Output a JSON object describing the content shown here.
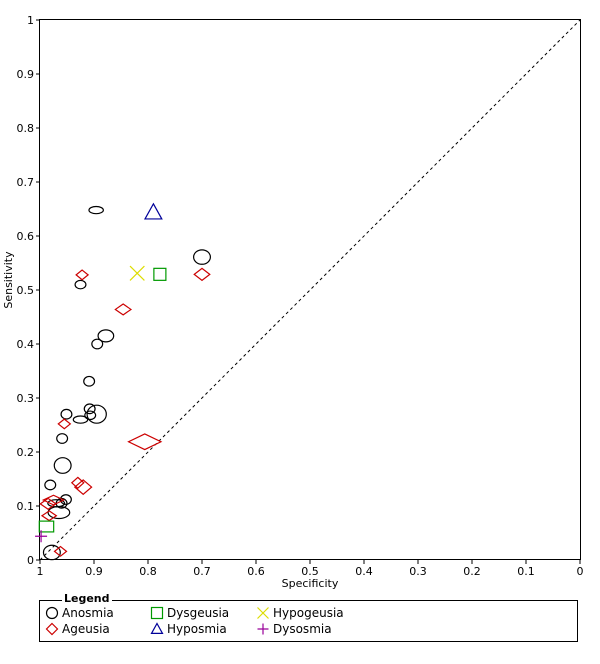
{
  "chart_data": {
    "type": "scatter",
    "title": "",
    "xlabel": "Specificity",
    "ylabel": "Sensitivity",
    "xlim": [
      1,
      0
    ],
    "ylim": [
      0,
      1
    ],
    "x_ticks": [
      "1",
      "0.9",
      "0.8",
      "0.7",
      "0.6",
      "0.5",
      "0.4",
      "0.3",
      "0.2",
      "0.1",
      "0"
    ],
    "y_ticks": [
      "0",
      "0.1",
      "0.2",
      "0.3",
      "0.4",
      "0.5",
      "0.6",
      "0.7",
      "0.8",
      "0.9",
      "1"
    ],
    "reference_line": "diagonal chance line (dashed)",
    "legend": {
      "title": "Legend",
      "entries": [
        {
          "name": "Anosmia",
          "marker": "circle",
          "color": "#000000"
        },
        {
          "name": "Ageusia",
          "marker": "diamond",
          "color": "#cc0000"
        },
        {
          "name": "Dysgeusia",
          "marker": "square",
          "color": "#009900"
        },
        {
          "name": "Hyposmia",
          "marker": "triangle",
          "color": "#000099"
        },
        {
          "name": "Hypogeusia",
          "marker": "x",
          "color": "#dddd00"
        },
        {
          "name": "Dysosmia",
          "marker": "plus",
          "color": "#990099"
        }
      ]
    },
    "series": [
      {
        "name": "Anosmia",
        "marker": "circle",
        "color": "#000000",
        "points": [
          {
            "x": 0.896,
            "y": 0.648,
            "w": 1.2,
            "h": 0.6
          },
          {
            "x": 0.7,
            "y": 0.561,
            "w": 1.4,
            "h": 1.2
          },
          {
            "x": 0.925,
            "y": 0.51,
            "w": 0.9,
            "h": 0.7
          },
          {
            "x": 0.878,
            "y": 0.415,
            "w": 1.3,
            "h": 1.0
          },
          {
            "x": 0.894,
            "y": 0.4,
            "w": 0.9,
            "h": 0.8
          },
          {
            "x": 0.909,
            "y": 0.331,
            "w": 0.9,
            "h": 0.8
          },
          {
            "x": 0.951,
            "y": 0.27,
            "w": 0.9,
            "h": 0.8
          },
          {
            "x": 0.908,
            "y": 0.28,
            "w": 0.9,
            "h": 0.8
          },
          {
            "x": 0.895,
            "y": 0.27,
            "w": 1.6,
            "h": 1.5
          },
          {
            "x": 0.925,
            "y": 0.26,
            "w": 1.2,
            "h": 0.6
          },
          {
            "x": 0.907,
            "y": 0.268,
            "w": 0.9,
            "h": 0.7
          },
          {
            "x": 0.959,
            "y": 0.225,
            "w": 0.9,
            "h": 0.8
          },
          {
            "x": 0.958,
            "y": 0.175,
            "w": 1.4,
            "h": 1.3
          },
          {
            "x": 0.981,
            "y": 0.139,
            "w": 0.9,
            "h": 0.8
          },
          {
            "x": 0.952,
            "y": 0.112,
            "w": 0.9,
            "h": 0.8
          },
          {
            "x": 0.96,
            "y": 0.105,
            "w": 0.9,
            "h": 0.8
          },
          {
            "x": 0.97,
            "y": 0.105,
            "w": 1.4,
            "h": 0.6
          },
          {
            "x": 0.965,
            "y": 0.088,
            "w": 1.8,
            "h": 1.0
          },
          {
            "x": 0.978,
            "y": 0.014,
            "w": 1.4,
            "h": 1.2
          }
        ]
      },
      {
        "name": "Ageusia",
        "marker": "diamond",
        "color": "#cc0000",
        "points": [
          {
            "x": 0.922,
            "y": 0.528,
            "w": 1.0,
            "h": 0.8
          },
          {
            "x": 0.7,
            "y": 0.529,
            "w": 1.3,
            "h": 1.0
          },
          {
            "x": 0.846,
            "y": 0.464,
            "w": 1.3,
            "h": 0.9
          },
          {
            "x": 0.955,
            "y": 0.252,
            "w": 1.0,
            "h": 0.8
          },
          {
            "x": 0.806,
            "y": 0.219,
            "w": 2.7,
            "h": 1.3
          },
          {
            "x": 0.93,
            "y": 0.143,
            "w": 1.0,
            "h": 0.9
          },
          {
            "x": 0.92,
            "y": 0.135,
            "w": 1.4,
            "h": 1.2
          },
          {
            "x": 0.975,
            "y": 0.111,
            "w": 1.7,
            "h": 0.8
          },
          {
            "x": 0.985,
            "y": 0.104,
            "w": 1.3,
            "h": 0.9
          },
          {
            "x": 0.983,
            "y": 0.082,
            "w": 1.2,
            "h": 0.8
          },
          {
            "x": 0.962,
            "y": 0.016,
            "w": 1.0,
            "h": 0.8
          }
        ]
      },
      {
        "name": "Dysgeusia",
        "marker": "square",
        "color": "#009900",
        "points": [
          {
            "x": 0.778,
            "y": 0.529,
            "w": 1.0,
            "h": 1.0
          },
          {
            "x": 0.988,
            "y": 0.062,
            "w": 1.2,
            "h": 0.9
          }
        ]
      },
      {
        "name": "Hyposmia",
        "marker": "triangle",
        "color": "#000099",
        "points": [
          {
            "x": 0.79,
            "y": 0.644,
            "w": 1.4,
            "h": 1.4
          }
        ]
      },
      {
        "name": "Hypogeusia",
        "marker": "x",
        "color": "#dddd00",
        "points": [
          {
            "x": 0.82,
            "y": 0.531,
            "w": 1.2,
            "h": 1.2
          }
        ]
      },
      {
        "name": "Dysosmia",
        "marker": "plus",
        "color": "#990099",
        "points": [
          {
            "x": 0.998,
            "y": 0.044,
            "w": 1.0,
            "h": 1.0
          }
        ]
      }
    ]
  }
}
